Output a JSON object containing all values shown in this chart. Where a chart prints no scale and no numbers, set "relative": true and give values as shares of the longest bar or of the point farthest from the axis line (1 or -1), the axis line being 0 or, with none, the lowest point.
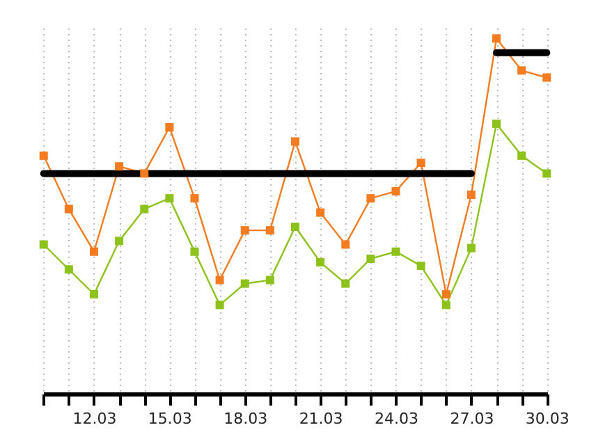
{
  "chart_data": {
    "type": "line",
    "relative": true,
    "marker": "square",
    "grid": "x",
    "categories": [
      null,
      null,
      "12.03",
      null,
      null,
      "15.03",
      null,
      null,
      "18.03",
      null,
      null,
      "21.03",
      null,
      null,
      "24.03",
      null,
      null,
      "27.03",
      null,
      null,
      "30.03"
    ],
    "series": [
      {
        "color": "#f47b20",
        "values": [
          0.67,
          0.52,
          0.4,
          0.64,
          0.62,
          0.75,
          0.55,
          0.32,
          0.46,
          0.46,
          0.71,
          0.51,
          0.42,
          0.55,
          0.57,
          0.65,
          0.28,
          0.56,
          1,
          0.91,
          0.89
        ]
      },
      {
        "color": "#8cc21a",
        "values": [
          0.42,
          0.35,
          0.28,
          0.43,
          0.52,
          0.55,
          0.4,
          0.25,
          0.31,
          0.32,
          0.47,
          0.37,
          0.31,
          0.38,
          0.4,
          0.36,
          0.25,
          0.41,
          0.76,
          0.67,
          0.62
        ]
      },
      {
        "color": "#000000",
        "marker": "none",
        "values": [
          0.62,
          0.62,
          0.62,
          0.62,
          0.62,
          0.62,
          0.62,
          0.62,
          0.62,
          0.62,
          0.62,
          0.62,
          0.62,
          0.62,
          0.62,
          0.62,
          0.62,
          0.62,
          null,
          null,
          null
        ]
      },
      {
        "color": "#000000",
        "marker": "none",
        "values": [
          null,
          null,
          null,
          null,
          null,
          null,
          null,
          null,
          null,
          null,
          null,
          null,
          null,
          null,
          null,
          null,
          null,
          null,
          0.96,
          0.96,
          0.96
        ]
      }
    ]
  }
}
